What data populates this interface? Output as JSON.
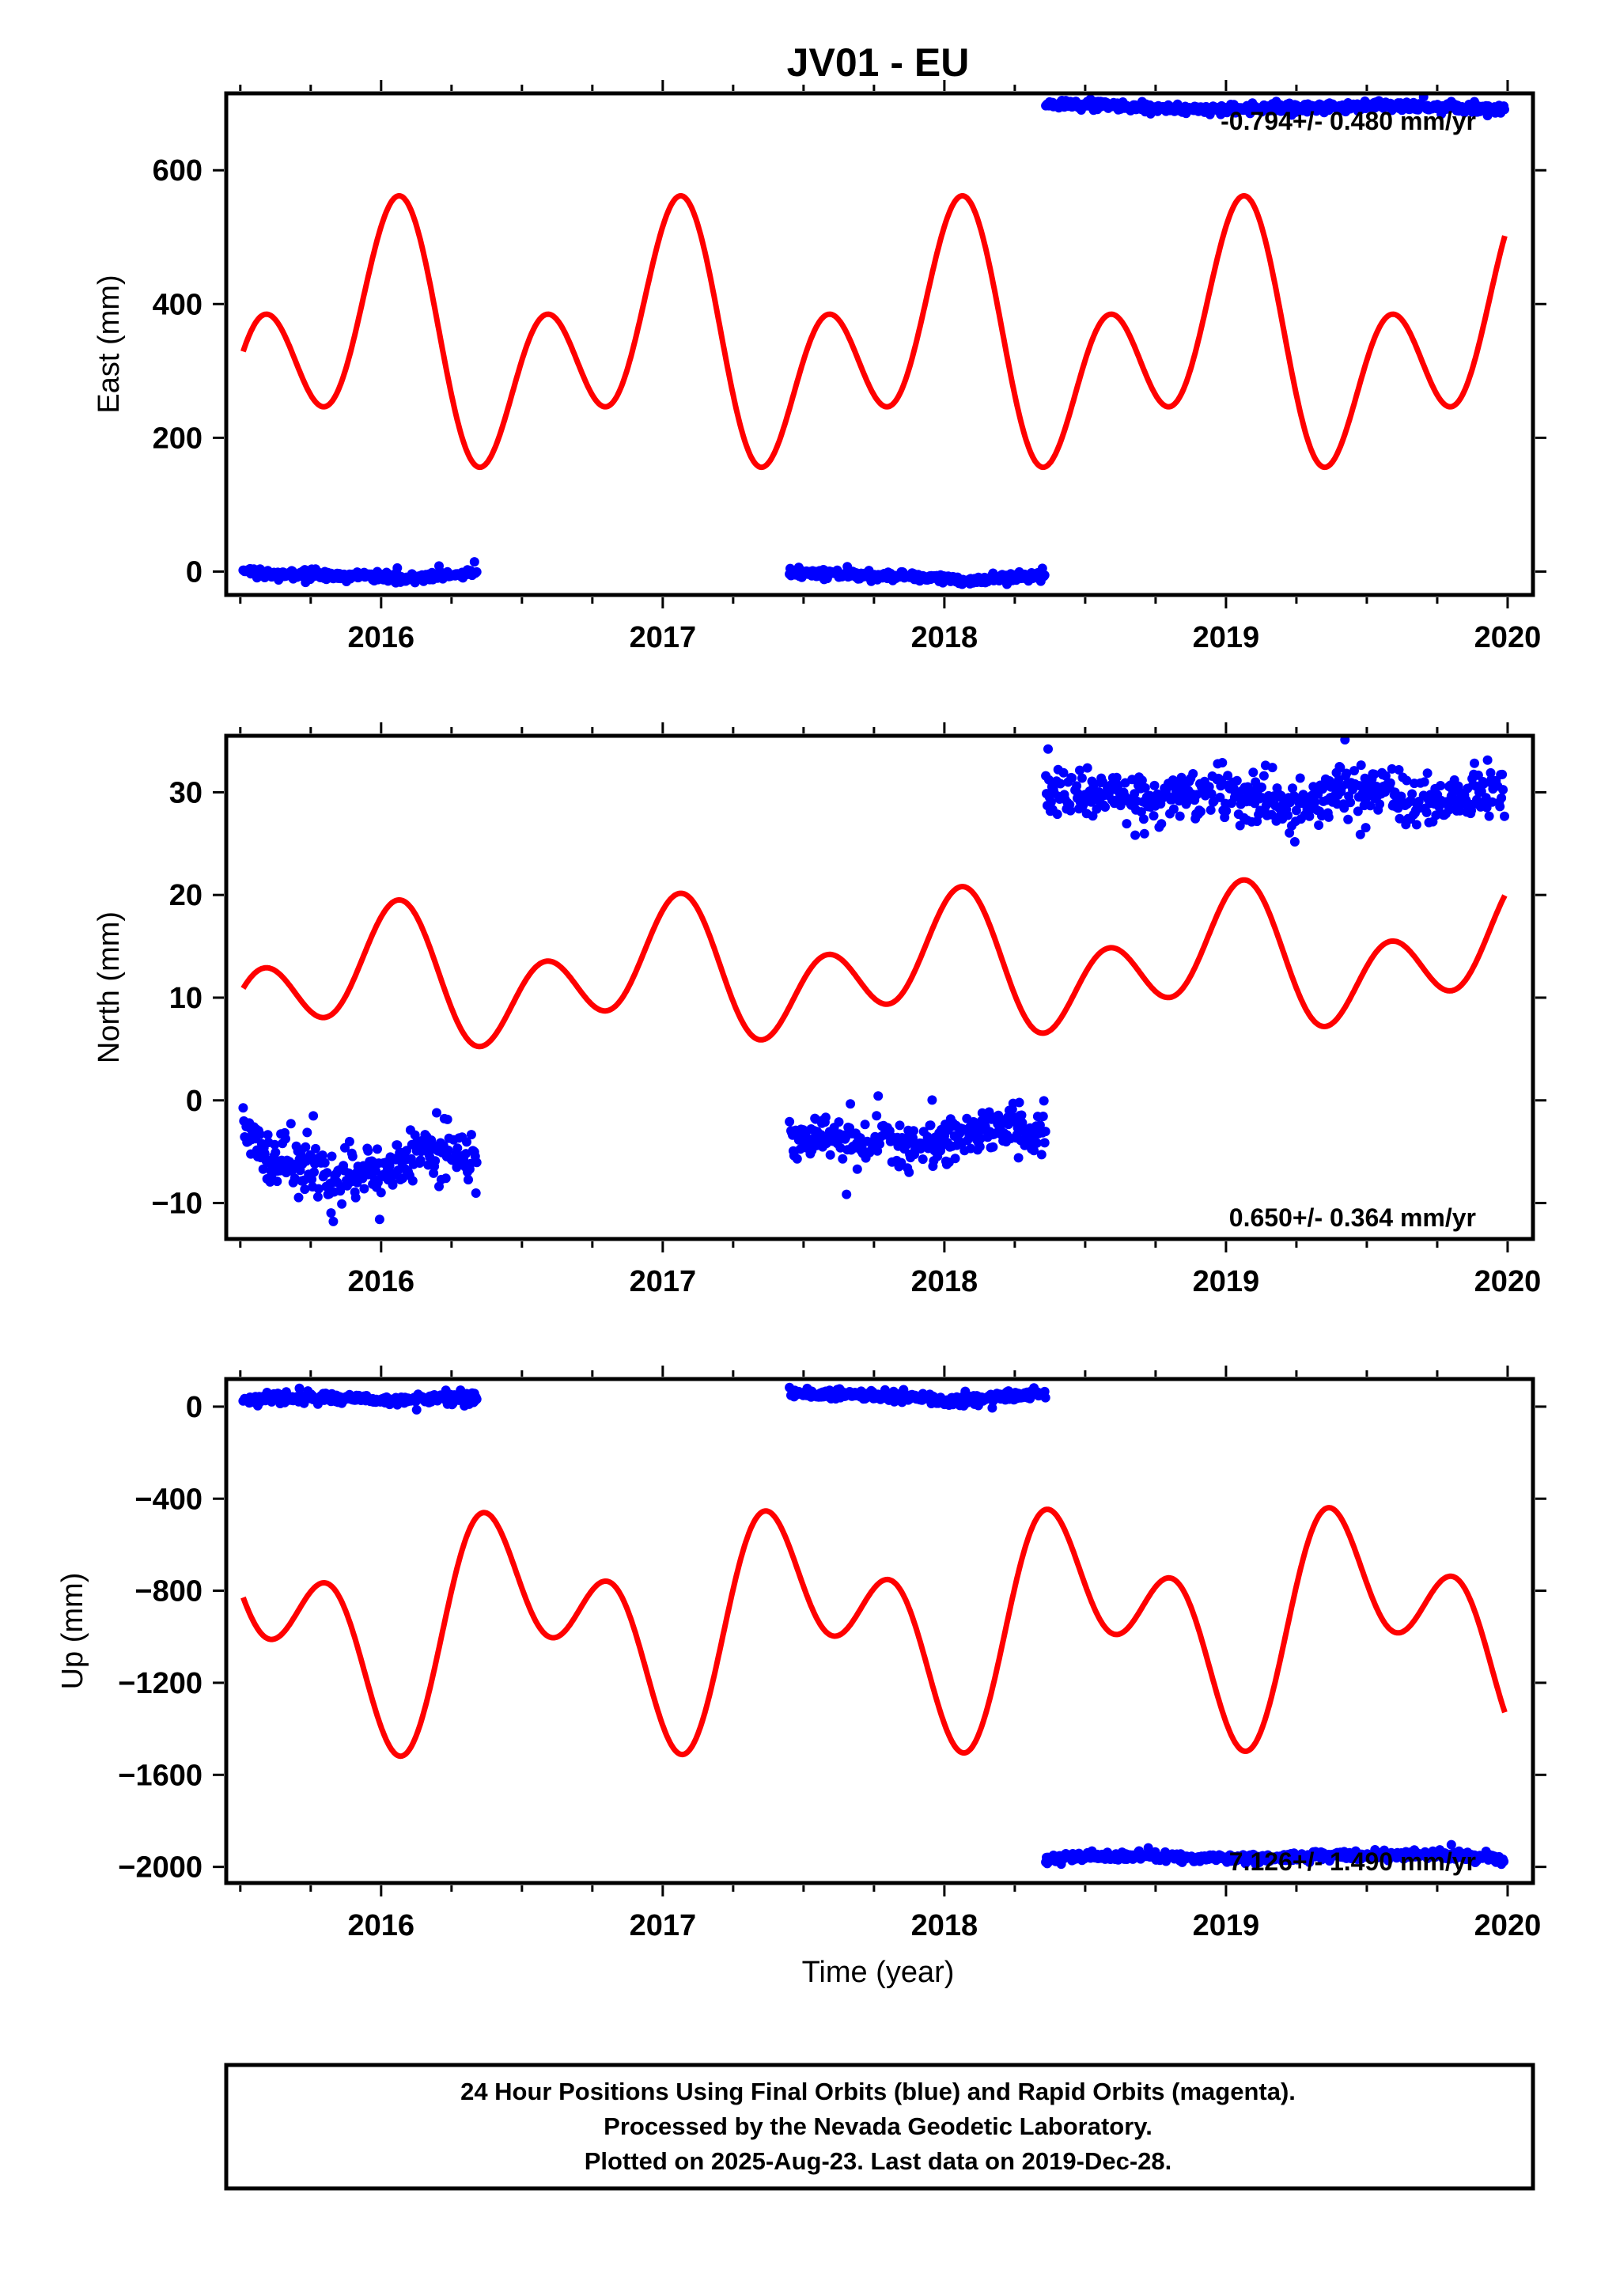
{
  "title": "JV01 - EU",
  "xlabel": "Time (year)",
  "footer": {
    "line1": "24 Hour Positions Using Final Orbits (blue) and Rapid Orbits (magenta).",
    "line2": "Processed by the Nevada Geodetic Laboratory.",
    "line3": "Plotted on 2025-Aug-23. Last data on 2019-Dec-28."
  },
  "colors": {
    "final": "#0000ff",
    "model": "#ff0000",
    "frame": "#000000"
  },
  "chart_data": [
    {
      "type": "scatter",
      "ylabel": "East (mm)",
      "rate": "-0.794+/- 0.480 mm/yr",
      "rate_position": "top-right",
      "xlim": [
        2015.45,
        2020.09
      ],
      "ylim": [
        -35,
        715
      ],
      "xticks": [
        2016,
        2017,
        2018,
        2019,
        2020
      ],
      "yticks": [
        0,
        200,
        400,
        600
      ],
      "series": [
        {
          "kind": "points",
          "segments": [
            {
              "x": [
                2015.51,
                2015.58,
                2015.7,
                2015.85,
                2016.0,
                2016.1,
                2016.2,
                2016.3,
                2016.34
              ],
              "y": [
                2,
                -2,
                -4,
                -6,
                -8,
                -10,
                -6,
                -4,
                0
              ]
            },
            {
              "x": [
                2017.45,
                2017.6,
                2017.75,
                2017.9,
                2018.05,
                2018.2,
                2018.36
              ],
              "y": [
                -1,
                -3,
                -6,
                -9,
                -13,
                -10,
                -4
              ]
            },
            {
              "x": [
                2018.36,
                2018.55,
                2018.75,
                2018.95,
                2019.15,
                2019.35,
                2019.55,
                2019.75,
                2019.99
              ],
              "y": [
                700,
                698,
                693,
                691,
                692,
                694,
                696,
                694,
                693
              ]
            }
          ]
        },
        {
          "kind": "model",
          "x_start": 2015.51,
          "x_end": 2019.99,
          "offset": 340,
          "trend": 0,
          "annual": [
            0,
            100
          ],
          "semiannual": [
            107,
            76
          ]
        }
      ]
    },
    {
      "type": "scatter",
      "ylabel": "North (mm)",
      "rate": "0.650+/- 0.364 mm/yr",
      "rate_position": "bottom-right",
      "xlim": [
        2015.45,
        2020.09
      ],
      "ylim": [
        -13.5,
        35.5
      ],
      "xticks": [
        2016,
        2017,
        2018,
        2019,
        2020
      ],
      "yticks": [
        -10,
        0,
        10,
        20,
        30
      ],
      "series": [
        {
          "kind": "points",
          "segments": [
            {
              "x": [
                2015.51,
                2015.6,
                2015.7,
                2015.8,
                2015.9,
                2016.0,
                2016.1,
                2016.2,
                2016.34
              ],
              "y": [
                -2.6,
                -5.5,
                -6.2,
                -6.8,
                -7.2,
                -7.0,
                -5.5,
                -5.0,
                -5.8
              ]
            },
            {
              "x": [
                2017.45,
                2017.55,
                2017.65,
                2017.75,
                2017.85,
                2017.95,
                2018.05,
                2018.15,
                2018.25,
                2018.36
              ],
              "y": [
                -4.0,
                -3.5,
                -4.2,
                -3.8,
                -4.5,
                -4.2,
                -3.5,
                -2.8,
                -2.5,
                -3.0
              ]
            },
            {
              "x": [
                2018.36,
                2018.5,
                2018.65,
                2018.8,
                2018.95,
                2019.1,
                2019.25,
                2019.4,
                2019.55,
                2019.7,
                2019.85,
                2019.99
              ],
              "y": [
                30.0,
                29.8,
                29.3,
                29.6,
                30.2,
                29.5,
                28.4,
                30.2,
                30.5,
                28.8,
                29.3,
                30.5
              ]
            }
          ]
        },
        {
          "kind": "model",
          "x_start": 2015.51,
          "x_end": 2019.99,
          "offset": 12.7,
          "trend": 0.65,
          "annual": [
            0,
            3.55
          ],
          "semiannual": [
            3.8,
            2.75
          ]
        }
      ]
    },
    {
      "type": "scatter",
      "ylabel": "Up (mm)",
      "rate": "7.126+/- 1.490 mm/yr",
      "rate_position": "bottom-right",
      "xlim": [
        2015.45,
        2020.09
      ],
      "ylim": [
        -2070,
        120
      ],
      "xticks": [
        2016,
        2017,
        2018,
        2019,
        2020
      ],
      "yticks": [
        -2000,
        -1600,
        -1200,
        -800,
        -400,
        0
      ],
      "series": [
        {
          "kind": "points",
          "segments": [
            {
              "x": [
                2015.51,
                2015.6,
                2015.75,
                2015.9,
                2016.0,
                2016.15,
                2016.3,
                2016.34
              ],
              "y": [
                30,
                40,
                38,
                35,
                28,
                36,
                38,
                35
              ]
            },
            {
              "x": [
                2017.45,
                2017.6,
                2017.75,
                2017.9,
                2018.0,
                2018.1,
                2018.25,
                2018.36
              ],
              "y": [
                55,
                55,
                50,
                42,
                20,
                30,
                50,
                55
              ]
            },
            {
              "x": [
                2018.36,
                2018.55,
                2018.75,
                2018.95,
                2019.15,
                2019.35,
                2019.55,
                2019.75,
                2019.95,
                2019.99
              ],
              "y": [
                -1965,
                -1955,
                -1958,
                -1962,
                -1960,
                -1952,
                -1948,
                -1945,
                -1958,
                -1975
              ]
            }
          ]
        },
        {
          "kind": "model",
          "x_start": 2015.51,
          "x_end": 2019.99,
          "offset": -935,
          "trend": 7.1,
          "annual": [
            0,
            -300
          ],
          "semiannual": [
            -270,
            -145
          ]
        }
      ]
    }
  ]
}
